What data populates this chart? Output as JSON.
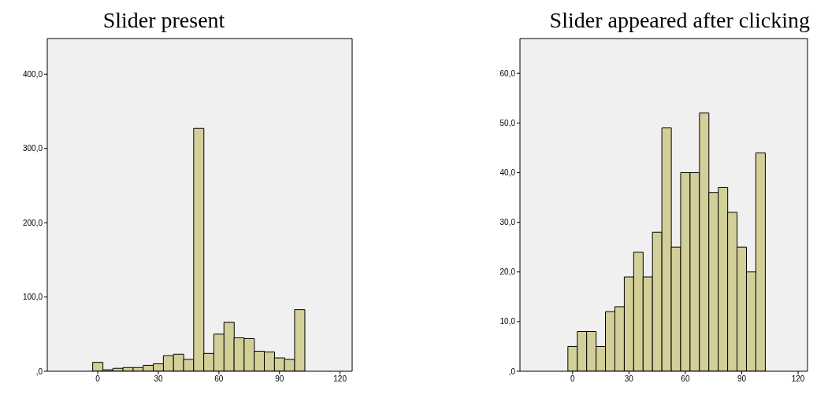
{
  "chart_data": [
    {
      "type": "histogram",
      "title": "Slider present",
      "color": "#d3cf98",
      "bins": [
        -2.5,
        2.5,
        7.5,
        12.5,
        17.5,
        22.5,
        27.5,
        32.5,
        37.5,
        42.5,
        47.5,
        52.5,
        57.5,
        62.5,
        67.5,
        72.5,
        77.5,
        82.5,
        87.5,
        92.5,
        97.5,
        102.5
      ],
      "values": [
        12,
        2,
        4,
        5,
        5,
        8,
        10,
        21,
        23,
        16,
        327,
        24,
        50,
        66,
        45,
        44,
        27,
        26,
        18,
        16,
        83
      ],
      "xlim": [
        -25,
        126
      ],
      "xticks": [
        0,
        30,
        60,
        90,
        120
      ],
      "ylim": [
        0,
        448
      ],
      "yticks": [
        {
          "value": 0,
          "label": ",0"
        },
        {
          "value": 100,
          "label": "100,0"
        },
        {
          "value": 200,
          "label": "200,0"
        },
        {
          "value": 300,
          "label": "300,0"
        },
        {
          "value": 400,
          "label": "400,0"
        }
      ]
    },
    {
      "type": "histogram",
      "title": "Slider appeared after clicking",
      "color": "#d3cf98",
      "bins": [
        -2.5,
        2.5,
        7.5,
        12.5,
        17.5,
        22.5,
        27.5,
        32.5,
        37.5,
        42.5,
        47.5,
        52.5,
        57.5,
        62.5,
        67.5,
        72.5,
        77.5,
        82.5,
        87.5,
        92.5,
        97.5,
        102.5
      ],
      "values": [
        5,
        8,
        8,
        5,
        12,
        13,
        19,
        24,
        19,
        28,
        49,
        25,
        40,
        40,
        52,
        36,
        37,
        32,
        25,
        20,
        44
      ],
      "xlim": [
        -28,
        125
      ],
      "xticks": [
        0,
        30,
        60,
        90,
        120
      ],
      "ylim": [
        0,
        67
      ],
      "yticks": [
        {
          "value": 0,
          "label": ",0"
        },
        {
          "value": 10,
          "label": "10,0"
        },
        {
          "value": 20,
          "label": "20,0"
        },
        {
          "value": 30,
          "label": "30,0"
        },
        {
          "value": 40,
          "label": "40,0"
        },
        {
          "value": 50,
          "label": "50,0"
        },
        {
          "value": 60,
          "label": "60,0"
        }
      ]
    }
  ]
}
